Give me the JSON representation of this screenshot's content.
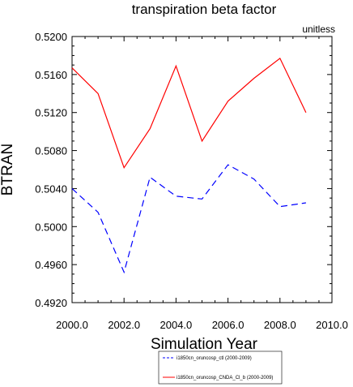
{
  "chart_data": {
    "type": "line",
    "title": "transpiration beta factor",
    "units_label": "unitless",
    "xlabel": "Simulation Year",
    "ylabel": "BTRAN",
    "xlim": [
      2000,
      2010
    ],
    "ylim": [
      0.492,
      0.52
    ],
    "xticks": [
      2000,
      2002,
      2004,
      2006,
      2008,
      2010
    ],
    "xtick_labels": [
      "2000.0",
      "2002.0",
      "2004.0",
      "2006.0",
      "2008.0",
      "2010.0"
    ],
    "yticks": [
      0.492,
      0.496,
      0.5,
      0.504,
      0.508,
      0.512,
      0.516,
      0.52
    ],
    "ytick_labels": [
      "0.4920",
      "0.4960",
      "0.5000",
      "0.5040",
      "0.5080",
      "0.5120",
      "0.5160",
      "0.5200"
    ],
    "grid": false,
    "legend_position": "bottom",
    "x": [
      2000,
      2001,
      2002,
      2003,
      2004,
      2005,
      2006,
      2007,
      2008,
      2009
    ],
    "series": [
      {
        "name": "i1850cn_oruncosp_ctl (2000-2009)",
        "color": "#0000ff",
        "dash": "dashed",
        "values": [
          0.504,
          0.5015,
          0.4952,
          0.5052,
          0.5032,
          0.5029,
          0.5065,
          0.505,
          0.5021,
          0.5025
        ]
      },
      {
        "name": "i1850cn_oruncosp_CNDA_Cl_b (2000-2009)",
        "color": "#ff0000",
        "dash": "solid",
        "values": [
          0.5167,
          0.514,
          0.5062,
          0.5103,
          0.5169,
          0.509,
          0.5132,
          0.5156,
          0.5177,
          0.512
        ]
      }
    ]
  }
}
